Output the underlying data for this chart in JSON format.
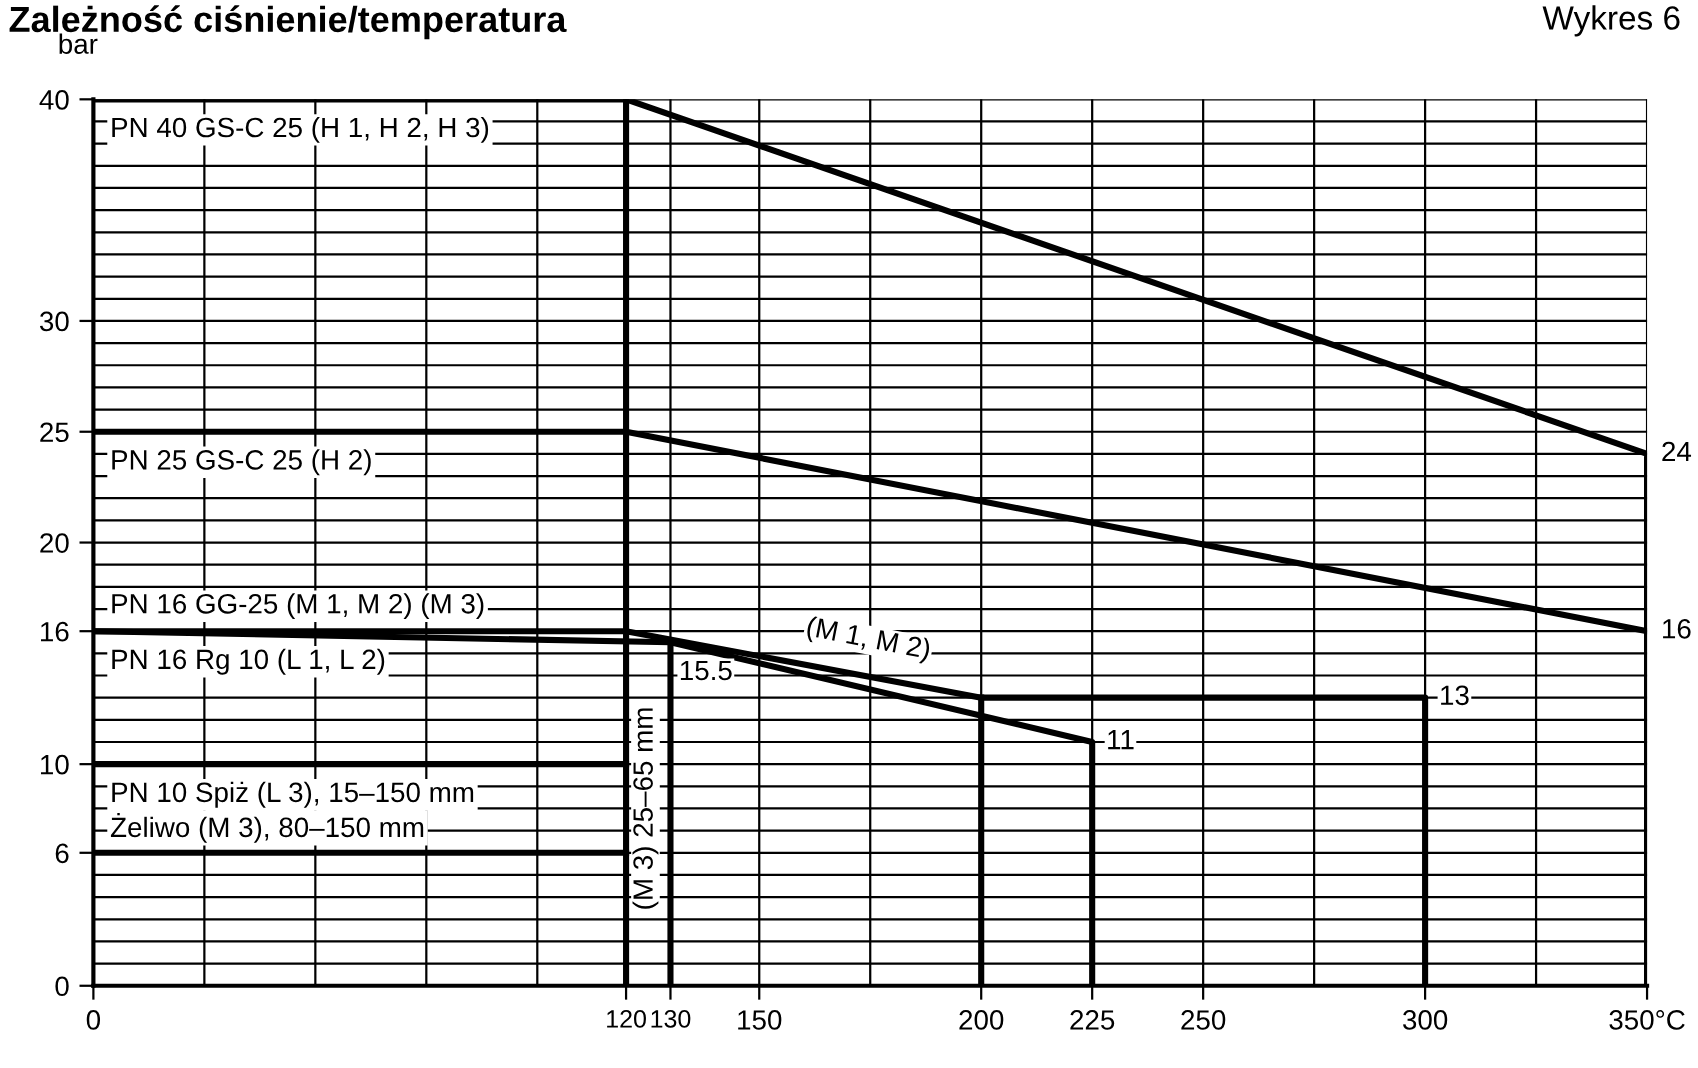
{
  "chart_data": {
    "type": "line",
    "title": "Zależność ciśnienie/temperatura",
    "ylabel": "bar",
    "series": [
      {
        "name": "PN 40 GS-C 25 (H 1, H 2, H 3)",
        "color": "#000000",
        "x": [
          0,
          120,
          350,
          350
        ],
        "values": [
          40,
          40,
          24,
          0
        ]
      },
      {
        "name": "PN 25 GS-C 25 (H 2)",
        "color": "#000000",
        "x": [
          0,
          120,
          350
        ],
        "values": [
          25,
          25,
          16
        ]
      },
      {
        "name": "PN 16 GG-25 (M 1, M 2) (M 3)",
        "color": "#000000",
        "x": [
          0,
          120,
          200,
          300,
          300
        ],
        "values": [
          16,
          16,
          13,
          13,
          0
        ]
      },
      {
        "name": "PN 16 Rg 10 (L 1, L 2)",
        "color": "#000000",
        "x": [
          0,
          130,
          225,
          225
        ],
        "values": [
          16,
          15.5,
          11,
          0
        ]
      },
      {
        "name": "PN 10 Spiż (L 3), 15–150 mm",
        "color": "#000000",
        "x": [
          0,
          120
        ],
        "values": [
          10,
          10
        ]
      },
      {
        "name": "Żeliwo (M 3), 80–150 mm",
        "color": "#000000",
        "x": [
          0,
          120
        ],
        "values": [
          6,
          6
        ]
      },
      {
        "color": "#000000",
        "x": [
          200,
          200
        ],
        "values": [
          13,
          0
        ]
      },
      {
        "color": "#000000",
        "x": [
          130,
          130
        ],
        "values": [
          15.5,
          0
        ]
      }
    ],
    "ref_lines": [
      {
        "axis": "x",
        "value": 120,
        "color": "#000000"
      }
    ],
    "xlim": [
      0,
      350
    ],
    "ylim": [
      0,
      40
    ],
    "xticks": [
      0,
      {
        "value": 25,
        "label": null
      },
      {
        "value": 50,
        "label": null
      },
      {
        "value": 75,
        "label": null
      },
      {
        "value": 100,
        "label": null
      },
      120,
      130,
      150,
      {
        "value": 175,
        "label": null
      },
      200,
      225,
      250,
      {
        "value": 275,
        "label": null
      },
      300,
      {
        "value": 325,
        "label": null
      },
      {
        "value": 350,
        "label": "350°C"
      }
    ],
    "yticks": [
      0,
      {
        "value": 1,
        "label": null
      },
      {
        "value": 2,
        "label": null
      },
      {
        "value": 3,
        "label": null
      },
      {
        "value": 4,
        "label": null
      },
      {
        "value": 5,
        "label": null
      },
      6,
      {
        "value": 7,
        "label": null
      },
      {
        "value": 8,
        "label": null
      },
      {
        "value": 9,
        "label": null
      },
      10,
      {
        "value": 11,
        "label": null
      },
      {
        "value": 12,
        "label": null
      },
      {
        "value": 13,
        "label": null
      },
      {
        "value": 14,
        "label": null
      },
      {
        "value": 15,
        "label": null
      },
      16,
      {
        "value": 17,
        "label": null
      },
      {
        "value": 18,
        "label": null
      },
      {
        "value": 19,
        "label": null
      },
      20,
      {
        "value": 21,
        "label": null
      },
      {
        "value": 22,
        "label": null
      },
      {
        "value": 23,
        "label": null
      },
      {
        "value": 24,
        "label": null
      },
      25,
      {
        "value": 26,
        "label": null
      },
      {
        "value": 27,
        "label": null
      },
      {
        "value": 28,
        "label": null
      },
      {
        "value": 29,
        "label": null
      },
      30,
      {
        "value": 31,
        "label": null
      },
      {
        "value": 32,
        "label": null
      },
      {
        "value": 33,
        "label": null
      },
      {
        "value": 34,
        "label": null
      },
      {
        "value": 35,
        "label": null
      },
      {
        "value": 36,
        "label": null
      },
      {
        "value": 37,
        "label": null
      },
      {
        "value": 38,
        "label": null
      },
      {
        "value": 39,
        "label": null
      },
      40
    ],
    "grid": true,
    "legend": "left",
    "marker": "none",
    "line_style": "solid",
    "annotations": [
      "Wykres 6",
      {
        "text": "24",
        "x": 350,
        "y": 24
      },
      {
        "text": "16",
        "x": 350,
        "y": 16
      },
      {
        "text": "13",
        "x": 300,
        "y": 13
      },
      {
        "text": "11",
        "x": 225,
        "y": 11
      },
      {
        "text": "15.5",
        "x": 130,
        "y": 15.5
      },
      {
        "text": "(M 1, M 2)",
        "x": 160,
        "y": 14.6
      },
      {
        "text": "(M 3) 25–65 mm",
        "x": 130,
        "y": 8
      }
    ]
  }
}
